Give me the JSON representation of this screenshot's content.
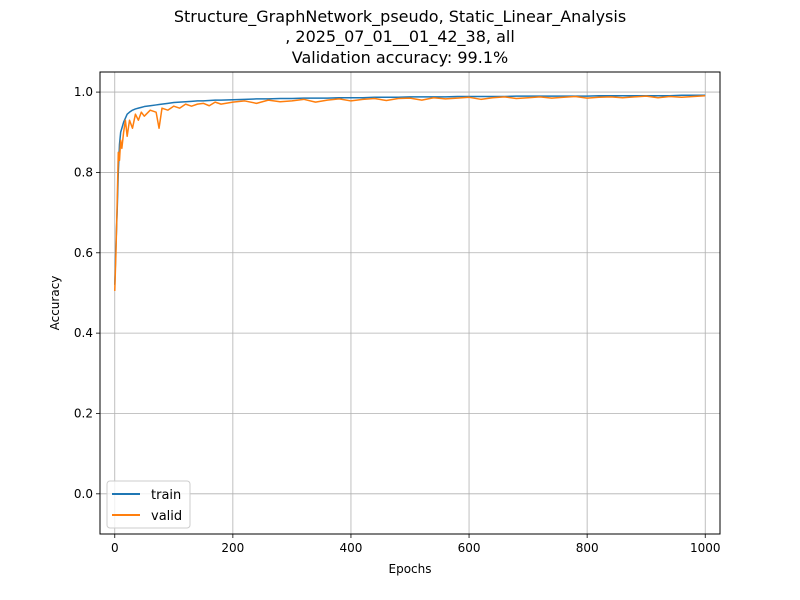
{
  "chart_data": {
    "type": "line",
    "title_lines": [
      "Structure_GraphNetwork_pseudo, Static_Linear_Analysis",
      ", 2025_07_01__01_42_38, all",
      "Validation accuracy: 99.1%"
    ],
    "xlabel": "Epochs",
    "ylabel": "Accuracy",
    "xlim": [
      -25,
      1025
    ],
    "ylim": [
      -0.1,
      1.05
    ],
    "xticks": [
      0,
      200,
      400,
      600,
      800,
      1000
    ],
    "yticks": [
      0.0,
      0.2,
      0.4,
      0.6,
      0.8,
      1.0
    ],
    "xtick_labels": [
      "0",
      "200",
      "400",
      "600",
      "800",
      "1000"
    ],
    "ytick_labels": [
      "0.0",
      "0.2",
      "0.4",
      "0.6",
      "0.8",
      "1.0"
    ],
    "grid": true,
    "legend_position": "lower-left",
    "colors": {
      "train": "#1f77b4",
      "valid": "#ff7f0e"
    },
    "series": [
      {
        "name": "train",
        "x": [
          0,
          2,
          4,
          6,
          8,
          10,
          12,
          15,
          18,
          21,
          25,
          30,
          35,
          40,
          45,
          50,
          60,
          70,
          75,
          80,
          90,
          100,
          110,
          120,
          130,
          140,
          150,
          160,
          170,
          180,
          200,
          220,
          240,
          260,
          280,
          300,
          320,
          340,
          360,
          380,
          400,
          420,
          440,
          460,
          480,
          500,
          520,
          540,
          560,
          580,
          600,
          620,
          640,
          660,
          680,
          700,
          720,
          740,
          760,
          780,
          800,
          820,
          840,
          860,
          880,
          900,
          920,
          940,
          960,
          980,
          1000
        ],
        "y": [
          0.52,
          0.62,
          0.7,
          0.8,
          0.87,
          0.9,
          0.91,
          0.925,
          0.935,
          0.945,
          0.95,
          0.955,
          0.958,
          0.96,
          0.962,
          0.964,
          0.966,
          0.968,
          0.969,
          0.97,
          0.972,
          0.974,
          0.975,
          0.976,
          0.977,
          0.978,
          0.978,
          0.979,
          0.98,
          0.98,
          0.981,
          0.982,
          0.983,
          0.983,
          0.984,
          0.984,
          0.985,
          0.985,
          0.985,
          0.986,
          0.986,
          0.986,
          0.987,
          0.987,
          0.987,
          0.988,
          0.988,
          0.988,
          0.988,
          0.989,
          0.989,
          0.989,
          0.989,
          0.989,
          0.99,
          0.99,
          0.99,
          0.99,
          0.99,
          0.99,
          0.99,
          0.991,
          0.991,
          0.991,
          0.991,
          0.991,
          0.991,
          0.991,
          0.992,
          0.992,
          0.992
        ]
      },
      {
        "name": "valid",
        "x": [
          0,
          2,
          4,
          6,
          8,
          10,
          12,
          15,
          18,
          21,
          25,
          30,
          35,
          40,
          45,
          50,
          60,
          70,
          75,
          80,
          90,
          100,
          110,
          120,
          130,
          140,
          150,
          160,
          170,
          180,
          200,
          220,
          240,
          260,
          280,
          300,
          320,
          340,
          360,
          380,
          400,
          420,
          440,
          460,
          480,
          500,
          520,
          540,
          560,
          580,
          600,
          620,
          640,
          660,
          680,
          700,
          720,
          740,
          760,
          780,
          800,
          820,
          840,
          860,
          880,
          900,
          920,
          940,
          960,
          980,
          1000
        ],
        "y": [
          0.505,
          0.6,
          0.72,
          0.85,
          0.83,
          0.88,
          0.86,
          0.9,
          0.93,
          0.89,
          0.93,
          0.91,
          0.945,
          0.93,
          0.95,
          0.94,
          0.955,
          0.95,
          0.91,
          0.96,
          0.955,
          0.965,
          0.96,
          0.97,
          0.965,
          0.97,
          0.972,
          0.966,
          0.975,
          0.97,
          0.975,
          0.978,
          0.972,
          0.98,
          0.976,
          0.978,
          0.982,
          0.975,
          0.98,
          0.983,
          0.978,
          0.982,
          0.984,
          0.979,
          0.984,
          0.985,
          0.98,
          0.986,
          0.983,
          0.985,
          0.987,
          0.982,
          0.986,
          0.988,
          0.984,
          0.986,
          0.988,
          0.985,
          0.987,
          0.989,
          0.985,
          0.987,
          0.988,
          0.986,
          0.988,
          0.99,
          0.986,
          0.989,
          0.987,
          0.989,
          0.991
        ]
      }
    ]
  }
}
